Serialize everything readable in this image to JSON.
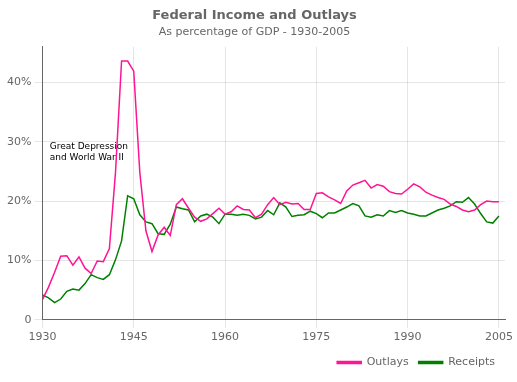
{
  "chart_data": {
    "type": "line",
    "title": "Federal Income and Outlays",
    "subtitle": "As percentage of GDP - 1930-2005",
    "annotations": [
      {
        "text": "Great Depression\nand World War II",
        "x": 1931.2,
        "y": 26.5
      }
    ],
    "x": [
      1930,
      1931,
      1932,
      1933,
      1934,
      1935,
      1936,
      1937,
      1938,
      1939,
      1940,
      1941,
      1942,
      1943,
      1944,
      1945,
      1946,
      1947,
      1948,
      1949,
      1950,
      1951,
      1952,
      1953,
      1954,
      1955,
      1956,
      1957,
      1958,
      1959,
      1960,
      1961,
      1962,
      1963,
      1964,
      1965,
      1966,
      1967,
      1968,
      1969,
      1970,
      1971,
      1972,
      1973,
      1974,
      1975,
      1976,
      1977,
      1978,
      1979,
      1980,
      1981,
      1982,
      1983,
      1984,
      1985,
      1986,
      1987,
      1988,
      1989,
      1990,
      1991,
      1992,
      1993,
      1994,
      1995,
      1996,
      1997,
      1998,
      1999,
      2000,
      2001,
      2002,
      2003,
      2004,
      2005
    ],
    "series": [
      {
        "name": "Outlays",
        "color": "#FF1493",
        "values": [
          3.4,
          5.5,
          8.0,
          10.7,
          10.8,
          9.2,
          10.6,
          8.7,
          7.8,
          9.9,
          9.8,
          12.0,
          24.8,
          43.6,
          43.6,
          41.9,
          24.8,
          15.0,
          11.5,
          14.3,
          15.6,
          14.2,
          19.4,
          20.4,
          18.8,
          17.3,
          16.6,
          17.0,
          17.9,
          18.8,
          17.8,
          18.2,
          19.2,
          18.6,
          18.5,
          17.2,
          17.8,
          19.4,
          20.6,
          19.4,
          19.8,
          19.5,
          19.6,
          18.6,
          18.6,
          21.3,
          21.4,
          20.7,
          20.2,
          19.6,
          21.7,
          22.7,
          23.1,
          23.5,
          22.2,
          22.8,
          22.5,
          21.6,
          21.3,
          21.2,
          22.0,
          22.9,
          22.4,
          21.5,
          21.0,
          20.6,
          20.3,
          19.5,
          19.1,
          18.5,
          18.2,
          18.5,
          19.4,
          20.0,
          19.9,
          19.9
        ]
      },
      {
        "name": "Receipts",
        "color": "#008000",
        "values": [
          4.2,
          3.7,
          2.9,
          3.5,
          4.8,
          5.2,
          5.0,
          6.1,
          7.6,
          7.1,
          6.8,
          7.6,
          10.1,
          13.3,
          20.9,
          20.4,
          17.7,
          16.5,
          16.2,
          14.5,
          14.4,
          16.1,
          19.0,
          18.7,
          18.5,
          16.5,
          17.5,
          17.8,
          17.3,
          16.2,
          17.8,
          17.8,
          17.6,
          17.8,
          17.6,
          17.0,
          17.3,
          18.4,
          17.7,
          19.7,
          19.0,
          17.4,
          17.6,
          17.7,
          18.3,
          17.9,
          17.2,
          18.0,
          18.0,
          18.5,
          19.0,
          19.6,
          19.2,
          17.5,
          17.3,
          17.7,
          17.5,
          18.4,
          18.1,
          18.4,
          18.0,
          17.8,
          17.5,
          17.5,
          18.0,
          18.5,
          18.8,
          19.2,
          19.9,
          19.8,
          20.6,
          19.5,
          17.9,
          16.5,
          16.3,
          17.5
        ]
      }
    ],
    "xlim": [
      1930,
      2006
    ],
    "xticks": [
      1930,
      1945,
      1960,
      1975,
      1990,
      2005
    ],
    "ylim": [
      0,
      46
    ],
    "yticks": [
      0,
      {
        "value": 10,
        "label": "10%"
      },
      {
        "value": 20,
        "label": "20%"
      },
      {
        "value": 30,
        "label": "30%"
      },
      {
        "value": 40,
        "label": "40%"
      }
    ],
    "grid": true,
    "legend": "lower right"
  }
}
